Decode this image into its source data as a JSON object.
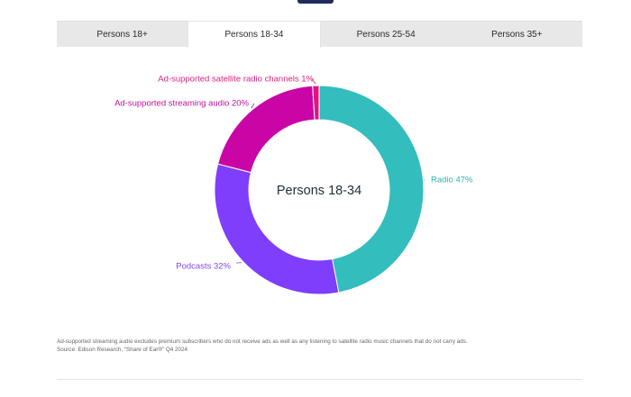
{
  "tabs": [
    {
      "label": "Persons 18+"
    },
    {
      "label": "Persons 18-34"
    },
    {
      "label": "Persons 25-54"
    },
    {
      "label": "Persons 35+"
    }
  ],
  "active_tab": 1,
  "chart_data": {
    "type": "pie",
    "donut": true,
    "center_label": "Persons 18-34",
    "categories": [
      "Radio",
      "Podcasts",
      "Ad-supported streaming audio",
      "Ad-supported satellite radio channels"
    ],
    "values": [
      47,
      32,
      20,
      1
    ],
    "slice_labels": [
      "Radio 47%",
      "Podcasts 32%",
      "Ad-supported streaming audio 20%",
      "Ad-supported satellite radio channels 1%"
    ],
    "colors": [
      "#33bdbd",
      "#7f3dfc",
      "#c905a6",
      "#e0157f"
    ],
    "label_colors": [
      "#2fb3b3",
      "#7e48f0",
      "#c0109f",
      "#d8237f"
    ]
  },
  "footnote": {
    "line1": "Ad-supported streaming audio excludes premium subscribers who do not receive ads as well as any listening to satellite radio music channels that do not carry ads.",
    "line2": "Source: Edison Research, “Share of Ear®” Q4 2024"
  }
}
